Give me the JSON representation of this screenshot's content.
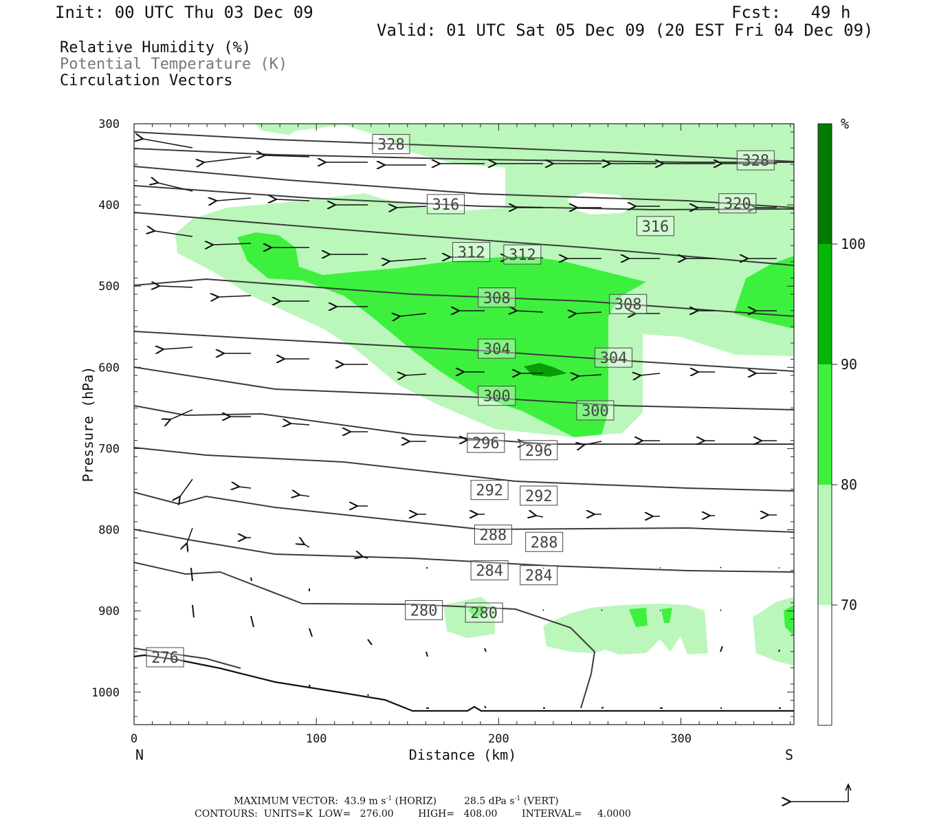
{
  "header": {
    "init": "Init: 00 UTC Thu 03 Dec 09",
    "fcst": "Fcst:   49 h",
    "valid": "Valid: 01 UTC Sat 05 Dec 09 (20 EST Fri 04 Dec 09)"
  },
  "fields": [
    {
      "label": "Relative Humidity (%)",
      "color": "#111111"
    },
    {
      "label": "Potential Temperature (K)",
      "color": "#777777"
    },
    {
      "label": "Circulation Vectors",
      "color": "#111111"
    }
  ],
  "footer": {
    "max_vector": "MAXIMUM VECTOR:  43.9 m s",
    "max_vector_sup": "-1",
    "max_vector_mid": " (HORIZ)         28.5 dPa s",
    "max_vector_sup2": "-1",
    "max_vector_end": " (VERT)",
    "contours": "CONTOURS:  UNITS=K  LOW=   276.00        HIGH=   408.00        INTERVAL=     4.0000"
  },
  "chart_data": {
    "type": "cross-section",
    "xlabel": "Distance (km)",
    "ylabel": "Pressure (hPa)",
    "xlim": [
      0,
      362
    ],
    "ylim": [
      300,
      1040
    ],
    "x_ticks": [
      0,
      100,
      200,
      300
    ],
    "y_ticks": [
      300,
      400,
      500,
      600,
      700,
      800,
      900,
      1000
    ],
    "end_labels": {
      "left": "N",
      "right": "S"
    },
    "rh_scale": {
      "unit": "%",
      "levels": [
        70,
        80,
        90,
        100
      ],
      "colors": [
        "#ffffff",
        "#bbf7bb",
        "#3ef03e",
        "#06b606",
        "#047a04"
      ]
    },
    "theta_labels": [
      {
        "value": "328",
        "x": 141,
        "p": 325
      },
      {
        "value": "328",
        "x": 341,
        "p": 345
      },
      {
        "value": "316",
        "x": 171,
        "p": 399
      },
      {
        "value": "320",
        "x": 331,
        "p": 398
      },
      {
        "value": "316",
        "x": 286,
        "p": 426
      },
      {
        "value": "312",
        "x": 185,
        "p": 458
      },
      {
        "value": "312",
        "x": 213,
        "p": 461
      },
      {
        "value": "308",
        "x": 199,
        "p": 514
      },
      {
        "value": "308",
        "x": 271,
        "p": 522
      },
      {
        "value": "304",
        "x": 199,
        "p": 577
      },
      {
        "value": "304",
        "x": 263,
        "p": 588
      },
      {
        "value": "300",
        "x": 199,
        "p": 635
      },
      {
        "value": "300",
        "x": 253,
        "p": 653
      },
      {
        "value": "296",
        "x": 193,
        "p": 693
      },
      {
        "value": "296",
        "x": 222,
        "p": 702
      },
      {
        "value": "292",
        "x": 195,
        "p": 751
      },
      {
        "value": "292",
        "x": 222,
        "p": 758
      },
      {
        "value": "288",
        "x": 197,
        "p": 806
      },
      {
        "value": "288",
        "x": 225,
        "p": 815
      },
      {
        "value": "284",
        "x": 195,
        "p": 850
      },
      {
        "value": "284",
        "x": 222,
        "p": 856
      },
      {
        "value": "280",
        "x": 159,
        "p": 899
      },
      {
        "value": "280",
        "x": 192,
        "p": 902
      },
      {
        "value": "276",
        "x": 17,
        "p": 957
      }
    ],
    "max_vector": {
      "horiz": 43.9,
      "horiz_unit": "m s-1",
      "vert": 28.5,
      "vert_unit": "dPa s-1"
    },
    "contours": {
      "units": "K",
      "low": 276.0,
      "high": 408.0,
      "interval": 4.0
    }
  }
}
